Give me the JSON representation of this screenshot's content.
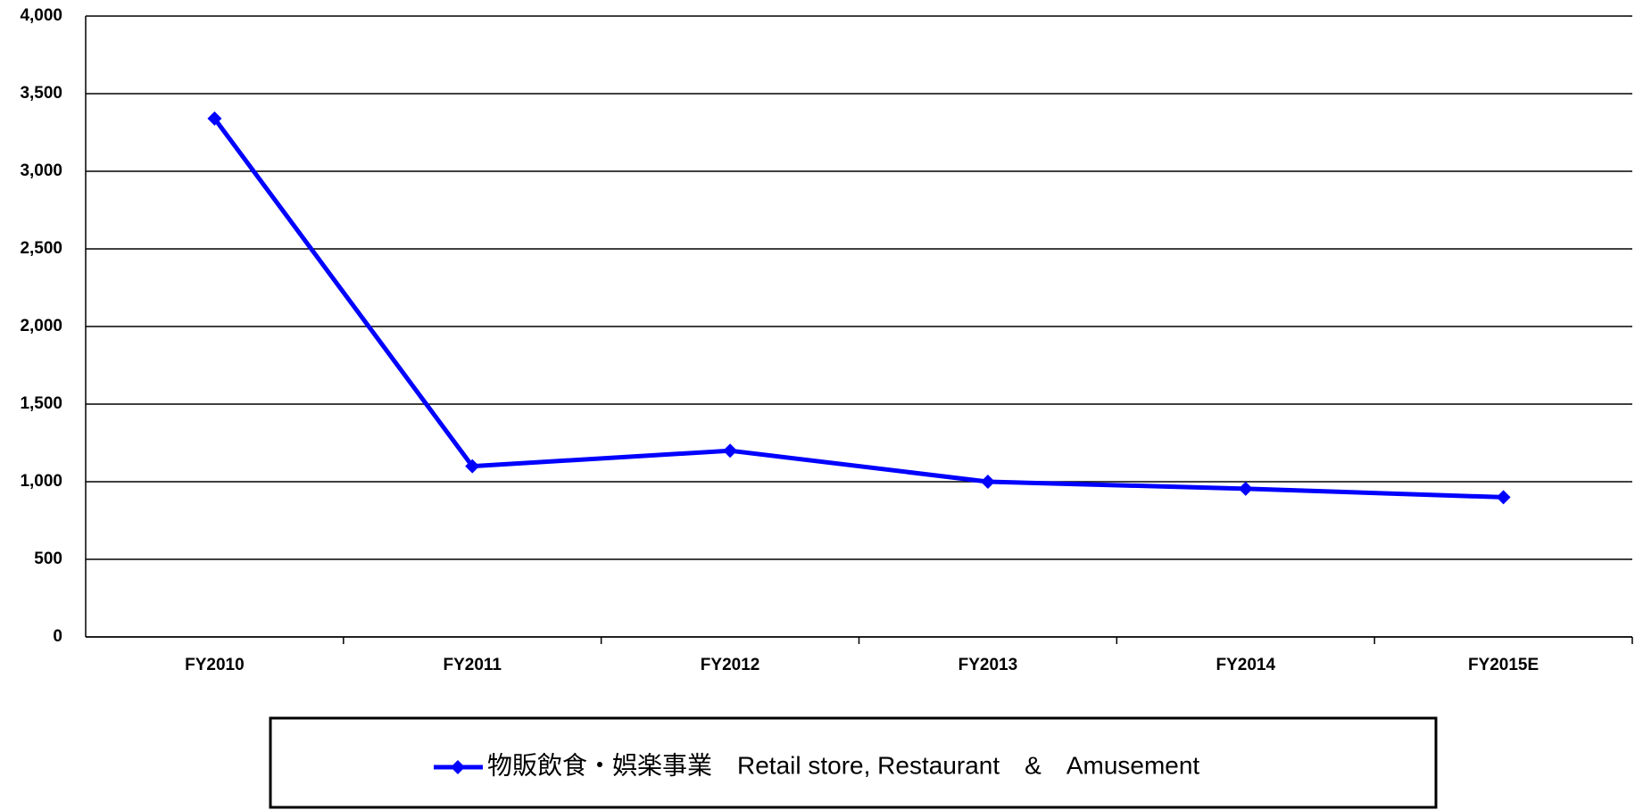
{
  "chart_data": {
    "type": "line",
    "categories": [
      "FY2010",
      "FY2011",
      "FY2012",
      "FY2013",
      "FY2014",
      "FY2015E"
    ],
    "series": [
      {
        "name": "物販飲食・娯楽事業　Retail store, Restaurant　&　Amusement",
        "color": "#0000ff",
        "values": [
          3340,
          1100,
          1200,
          1000,
          955,
          900
        ]
      }
    ],
    "ylim": [
      0,
      4000
    ],
    "yticks": [
      0,
      500,
      {
        "value": 1000,
        "label": "1,000"
      },
      {
        "value": 1500,
        "label": "1,500"
      },
      {
        "value": 2000,
        "label": "2,000"
      },
      {
        "value": 2500,
        "label": "2,500"
      },
      {
        "value": 3000,
        "label": "3,000"
      },
      {
        "value": 3500,
        "label": "3,500"
      },
      {
        "value": 4000,
        "label": "4,000"
      }
    ],
    "grid": true,
    "legend": "bottom"
  }
}
